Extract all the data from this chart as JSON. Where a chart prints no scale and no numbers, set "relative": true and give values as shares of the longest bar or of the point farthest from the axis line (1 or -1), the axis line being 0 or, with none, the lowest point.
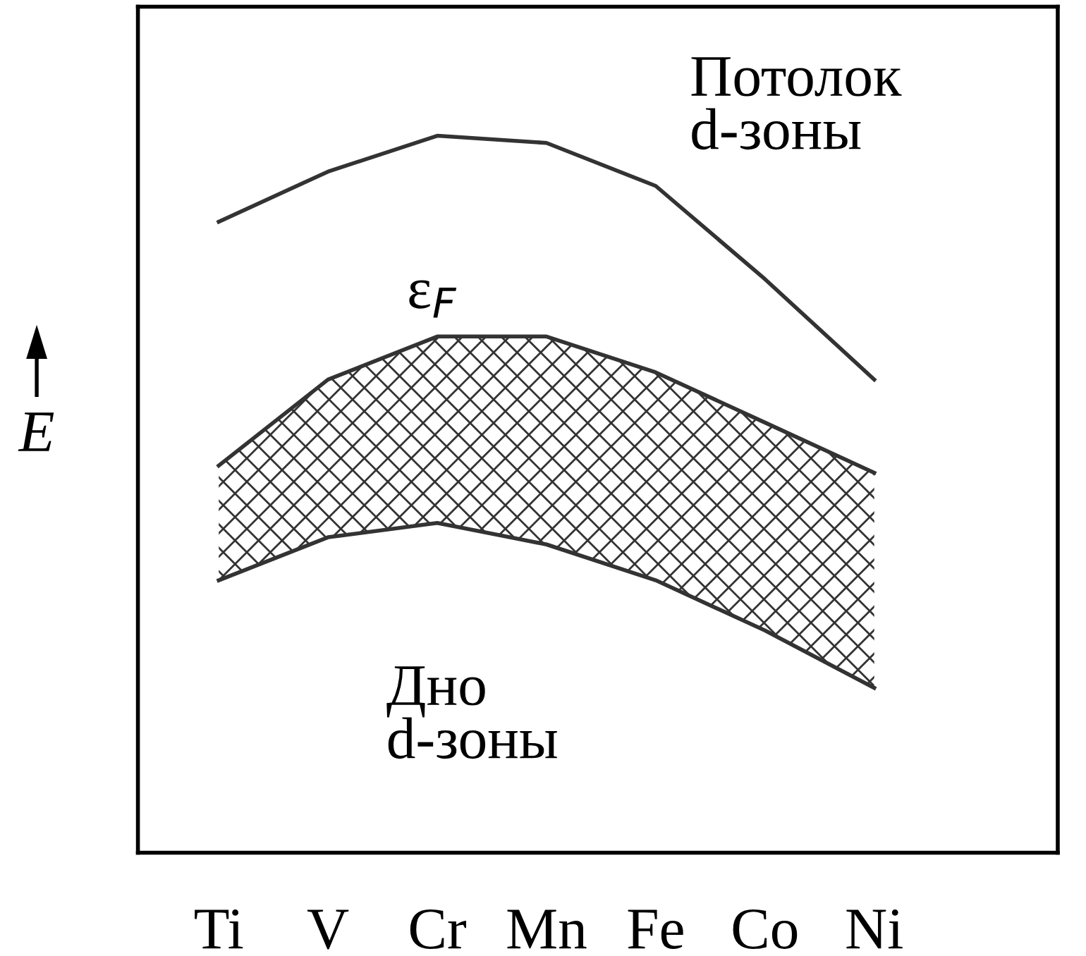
{
  "chart_data": {
    "type": "line",
    "relative": true,
    "ylabel": "E",
    "categories": [
      "Ti",
      "V",
      "Cr",
      "Mn",
      "Fe",
      "Co",
      "Ni"
    ],
    "series": [
      {
        "color": "#333333",
        "values": [
          0.88,
          0.95,
          1.0,
          0.99,
          0.93,
          0.8,
          0.66
        ]
      },
      {
        "color": "#333333",
        "values": [
          0.54,
          0.66,
          0.72,
          0.72,
          0.67,
          0.6,
          0.53
        ],
        "lower": [
          0.38,
          0.44,
          0.46,
          0.43,
          0.38,
          0.31,
          0.23
        ],
        "upper": [
          0.54,
          0.66,
          0.72,
          0.72,
          0.67,
          0.6,
          0.53
        ]
      },
      {
        "color": "#333333",
        "values": [
          0.38,
          0.44,
          0.46,
          0.43,
          0.38,
          0.31,
          0.23
        ]
      }
    ],
    "annotations": [
      "Потолок\nd-зоны",
      "ε$_{F}$",
      "Дно\nd-зоны"
    ],
    "tick_labels": "x",
    "grid": false,
    "legend": false,
    "marker": "none",
    "line_style": "solid"
  }
}
